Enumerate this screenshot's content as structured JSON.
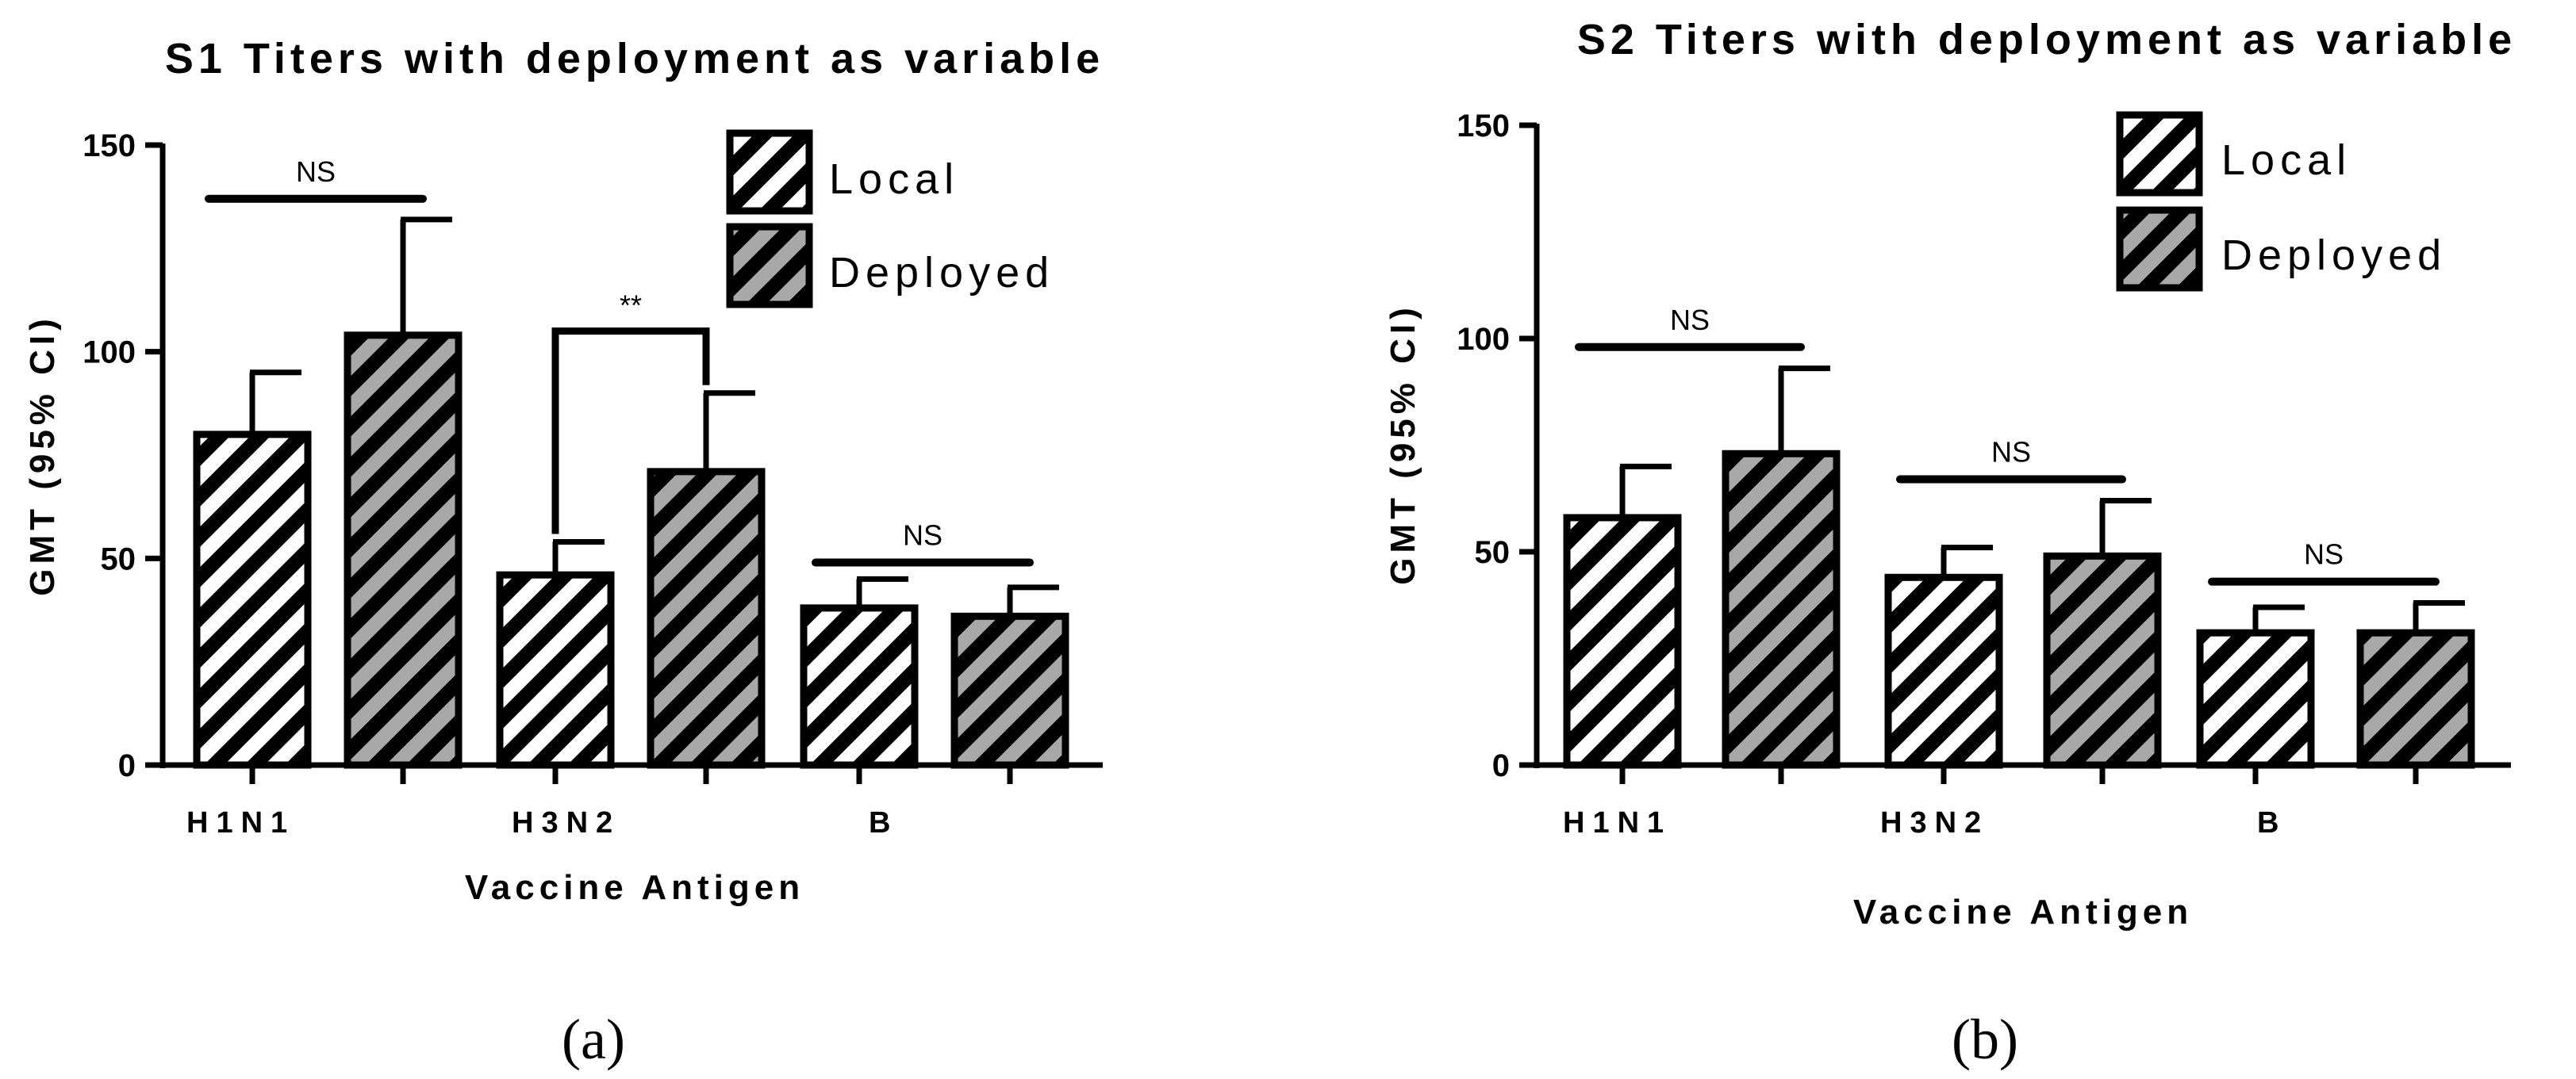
{
  "chart_data": [
    {
      "type": "bar",
      "title": "S1 Titers with deployment as variable",
      "xlabel": "Vaccine Antigen",
      "ylabel": "GMT (95% CI)",
      "ylim": [
        0,
        150
      ],
      "yticks": [
        0,
        50,
        100,
        150
      ],
      "categories": [
        "H1N1",
        "H3N2",
        "B"
      ],
      "series": [
        {
          "name": "Local",
          "values": [
            80,
            46,
            38
          ],
          "error_upper": [
            95,
            54,
            45
          ],
          "color": "#ffffff"
        },
        {
          "name": "Deployed",
          "values": [
            104,
            71,
            36
          ],
          "error_upper": [
            132,
            90,
            43
          ],
          "color": "#a8a8a8"
        }
      ],
      "annotations": [
        {
          "category": "H1N1",
          "text": "NS",
          "at": 137,
          "bracket": false
        },
        {
          "category": "H3N2",
          "text": "**",
          "at": 105,
          "bracket": true
        },
        {
          "category": "B",
          "text": "NS",
          "at": 49,
          "bracket": false
        }
      ],
      "legend_position": "top-right",
      "grid": false,
      "panel_label": "(a)"
    },
    {
      "type": "bar",
      "title": "S2 Titers with deployment as variable",
      "xlabel": "Vaccine Antigen",
      "ylabel": "GMT (95% CI)",
      "ylim": [
        0,
        150
      ],
      "yticks": [
        0,
        50,
        100,
        150
      ],
      "categories": [
        "H1N1",
        "H3N2",
        "B"
      ],
      "series": [
        {
          "name": "Local",
          "values": [
            58,
            44,
            31
          ],
          "error_upper": [
            70,
            51,
            37
          ],
          "color": "#ffffff"
        },
        {
          "name": "Deployed",
          "values": [
            73,
            49,
            31
          ],
          "error_upper": [
            93,
            62,
            38
          ],
          "color": "#a8a8a8"
        }
      ],
      "annotations": [
        {
          "category": "H1N1",
          "text": "NS",
          "at": 98,
          "bracket": false
        },
        {
          "category": "H3N2",
          "text": "NS",
          "at": 67,
          "bracket": false
        },
        {
          "category": "B",
          "text": "NS",
          "at": 43,
          "bracket": false
        }
      ],
      "legend_position": "top-right",
      "grid": false,
      "panel_label": "(b)"
    }
  ]
}
